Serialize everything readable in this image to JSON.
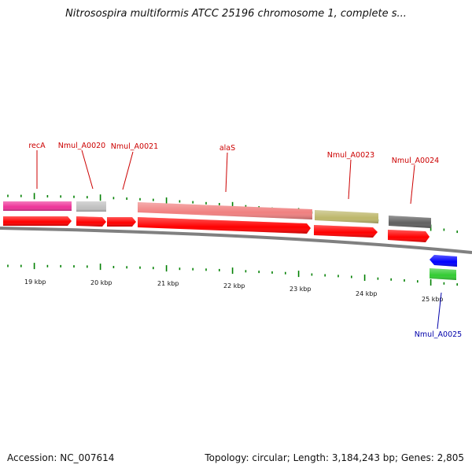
{
  "title": "Nitrosospira multiformis ATCC 25196 chromosome 1, complete s...",
  "footer": {
    "accession": "Accession: NC_007614",
    "stats": "Topology: circular; Length: 3,184,243 bp; Genes: 2,805"
  },
  "colors": {
    "label_red": "#cc0000",
    "label_blue": "#0000aa",
    "tick_green": "#008000",
    "backbone": "#808080",
    "cds": "#ff0000"
  },
  "genes": [
    {
      "name": "recA",
      "label": "recA",
      "color": "#ee3399",
      "label_color": "#cc0000"
    },
    {
      "name": "nmul-a0020",
      "label": "Nmul_A0020",
      "color": "#c0c0c0",
      "label_color": "#cc0000"
    },
    {
      "name": "nmul-a0021",
      "label": "Nmul_A0021",
      "color": null,
      "label_color": "#cc0000"
    },
    {
      "name": "alaS",
      "label": "alaS",
      "color": "#f08080",
      "label_color": "#cc0000"
    },
    {
      "name": "nmul-a0023",
      "label": "Nmul_A0023",
      "color": "#bdb76b",
      "label_color": "#cc0000"
    },
    {
      "name": "nmul-a0024",
      "label": "Nmul_A0024",
      "color": "#606060",
      "label_color": "#cc0000"
    },
    {
      "name": "nmul-a0025",
      "label": "Nmul_A0025",
      "color": "#0000ff",
      "label_color": "#0000aa"
    }
  ],
  "scale_labels": [
    "19 kbp",
    "20 kbp",
    "21 kbp",
    "22 kbp",
    "23 kbp",
    "24 kbp",
    "25 kbp"
  ]
}
